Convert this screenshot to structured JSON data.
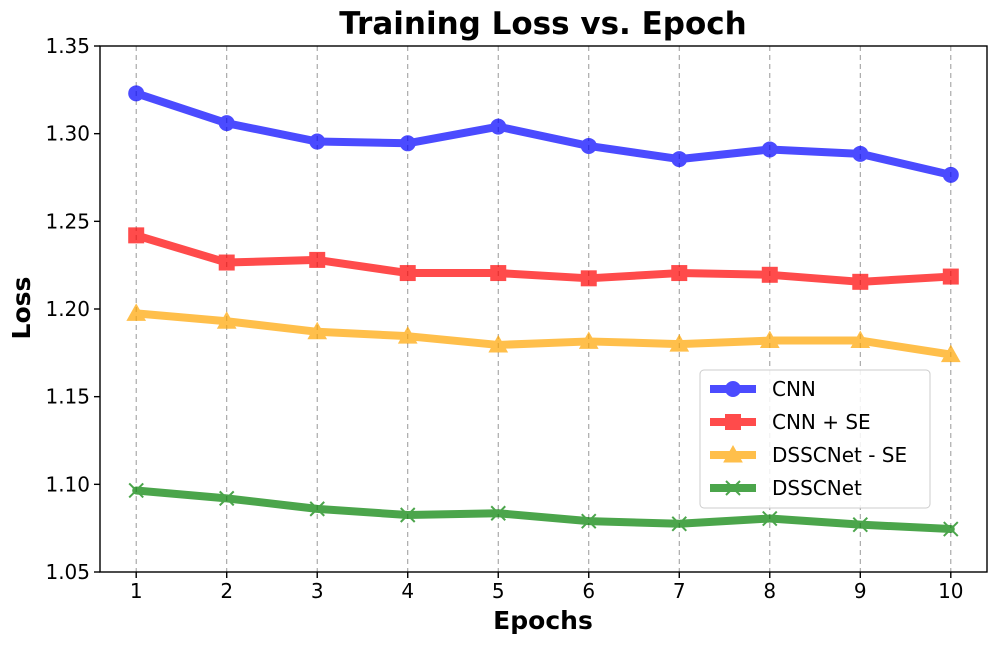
{
  "chart_data": {
    "type": "line",
    "title": "Training Loss vs. Epoch",
    "xlabel": "Epochs",
    "ylabel": "Loss",
    "x": [
      1,
      2,
      3,
      4,
      5,
      6,
      7,
      8,
      9,
      10
    ],
    "x_tick_labels": [
      "1",
      "2",
      "3",
      "4",
      "5",
      "6",
      "7",
      "8",
      "9",
      "10"
    ],
    "xlim": [
      0.6,
      10.4
    ],
    "ylim": [
      1.05,
      1.35
    ],
    "y_ticks": [
      1.05,
      1.1,
      1.15,
      1.2,
      1.25,
      1.3,
      1.35
    ],
    "y_tick_labels": [
      "1.05",
      "1.10",
      "1.15",
      "1.20",
      "1.25",
      "1.30",
      "1.35"
    ],
    "grid": "x-dashed",
    "legend_position": "center-right",
    "series": [
      {
        "name": "CNN",
        "color": "#0000ff",
        "marker": "circle",
        "values": [
          1.323,
          1.306,
          1.2955,
          1.2945,
          1.304,
          1.293,
          1.2855,
          1.291,
          1.2885,
          1.2765
        ]
      },
      {
        "name": "CNN + SE",
        "color": "#ff0000",
        "marker": "square",
        "values": [
          1.242,
          1.2265,
          1.228,
          1.2205,
          1.2205,
          1.2175,
          1.2205,
          1.2195,
          1.2155,
          1.2185
        ]
      },
      {
        "name": "DSSCNet - SE",
        "color": "#ffa500",
        "marker": "triangle",
        "values": [
          1.1975,
          1.193,
          1.187,
          1.1845,
          1.1795,
          1.1815,
          1.18,
          1.182,
          1.182,
          1.174
        ]
      },
      {
        "name": "DSSCNet",
        "color": "#008000",
        "marker": "x",
        "values": [
          1.0965,
          1.092,
          1.086,
          1.0825,
          1.0835,
          1.079,
          1.0775,
          1.0805,
          1.077,
          1.0745
        ]
      }
    ]
  }
}
